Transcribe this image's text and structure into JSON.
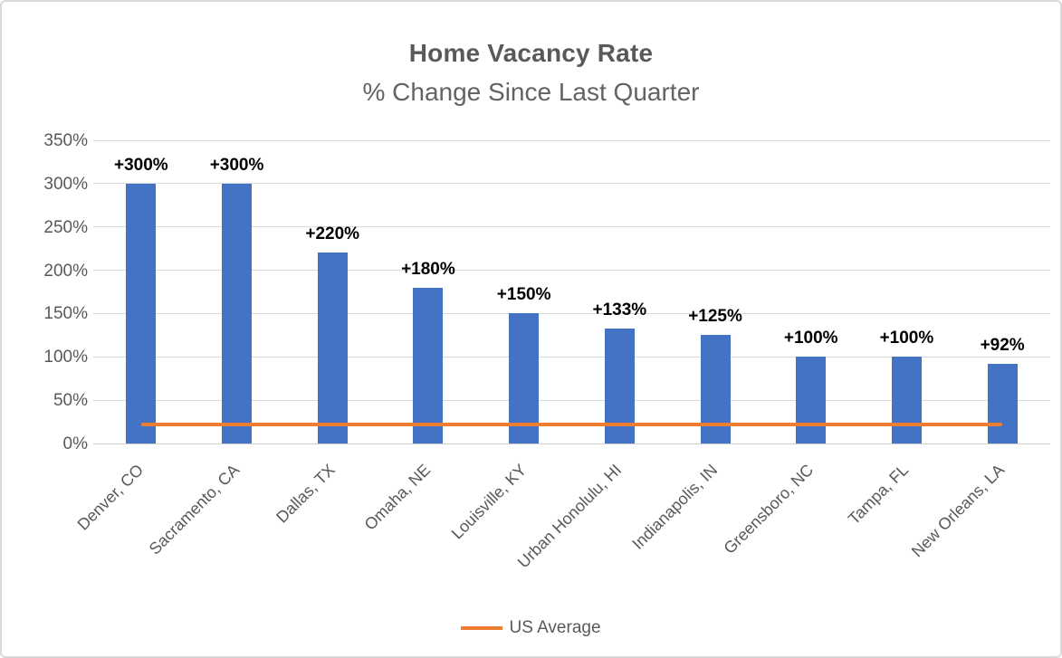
{
  "chart_data": {
    "type": "bar",
    "title": "Home Vacancy Rate",
    "subtitle": "% Change Since Last Quarter",
    "categories": [
      "Denver, CO",
      "Sacramento, CA",
      "Dallas, TX",
      "Omaha, NE",
      "Louisville, KY",
      "Urban Honolulu, HI",
      "Indianapolis, IN",
      "Greensboro, NC",
      "Tampa, FL",
      "New Orleans, LA"
    ],
    "values": [
      300,
      300,
      220,
      180,
      150,
      133,
      125,
      100,
      100,
      92
    ],
    "data_labels": [
      "+300%",
      "+300%",
      "+220%",
      "+180%",
      "+150%",
      "+133%",
      "+125%",
      "+100%",
      "+100%",
      "+92%"
    ],
    "xlabel": "",
    "ylabel": "",
    "ylim": [
      0,
      350
    ],
    "y_tick_values": [
      0,
      50,
      100,
      150,
      200,
      250,
      300,
      350
    ],
    "y_tick_labels": [
      "0%",
      "50%",
      "100%",
      "150%",
      "200%",
      "250%",
      "300%",
      "350%"
    ],
    "grid": true,
    "reference_line": {
      "name": "US Average",
      "value": 22
    },
    "legend": {
      "position": "bottom",
      "entries": [
        "US Average"
      ]
    },
    "colors": {
      "bar": "#4472C4",
      "reference_line": "#ED7D31",
      "gridline": "#D9D9D9",
      "axis_text": "#595959",
      "data_label": "#000000",
      "title": "#595959"
    }
  }
}
